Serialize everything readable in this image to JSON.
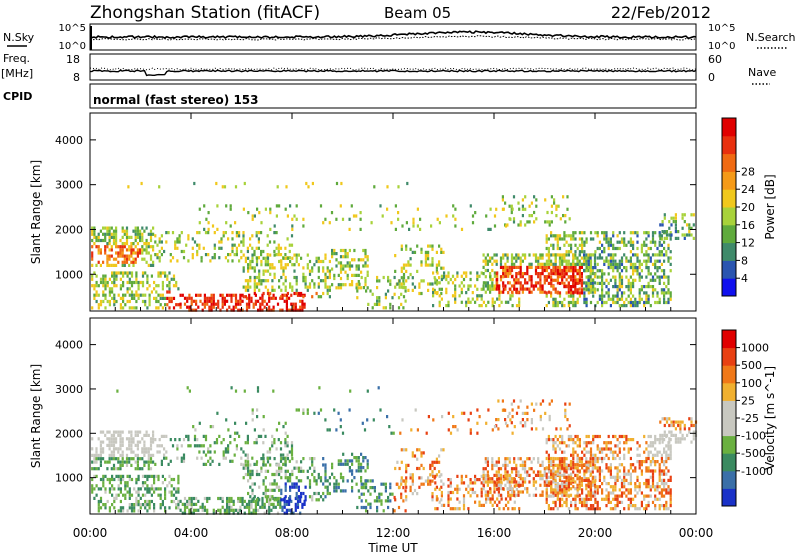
{
  "header": {
    "title": "Zhongshan Station (fitACF)",
    "beam": "Beam 05",
    "date": "22/Feb/2012",
    "mode": "normal (fast stereo) 153"
  },
  "panels": {
    "nsky": {
      "label": "N.Sky",
      "right_label": "N.Search",
      "left_ticks": [
        "10^5",
        "10^0"
      ],
      "right_ticks": [
        "10^5",
        "10^0"
      ]
    },
    "freq": {
      "label_line1": "Freq.",
      "label_line2": "[MHz]",
      "right_label": "Nave",
      "left_ticks": [
        "18",
        "8"
      ],
      "right_ticks": [
        "60",
        "0"
      ]
    },
    "cpid": {
      "label": "CPID"
    }
  },
  "chart_data": [
    {
      "type": "heatmap",
      "name": "power",
      "ylabel": "Slant Range [km]",
      "yticks": [
        1000,
        2000,
        3000,
        4000
      ],
      "ylim": [
        180,
        4600
      ],
      "xlim": [
        0,
        24
      ],
      "colorbar": {
        "label": "Power [dB]",
        "ticks": [
          "4",
          "8",
          "12",
          "16",
          "20",
          "24",
          "28"
        ],
        "colors": [
          "#1010ee",
          "#2a55b0",
          "#3f8a6a",
          "#5faa3c",
          "#a8d23a",
          "#f0c81c",
          "#f59a18",
          "#f06a12",
          "#e8300e",
          "#e00000"
        ]
      }
    },
    {
      "type": "heatmap",
      "name": "velocity",
      "ylabel": "Slant Range [km]",
      "yticks": [
        1000,
        2000,
        3000,
        4000
      ],
      "ylim": [
        180,
        4600
      ],
      "xlim": [
        0,
        24
      ],
      "colorbar": {
        "label": "Velocity [m s^-1]",
        "ticks": [
          "1000",
          "500",
          "100",
          "25",
          "-25",
          "-100",
          "-500",
          "-1000"
        ],
        "colors": [
          "#1a32c8",
          "#3a6fa8",
          "#3a8a60",
          "#6ab040",
          "#c8c8c0",
          "#c8c8c0",
          "#f0b030",
          "#f07818",
          "#e84012",
          "#e00000"
        ]
      }
    }
  ],
  "xaxis": {
    "label": "Time UT",
    "ticks": [
      "00:00",
      "04:00",
      "08:00",
      "12:00",
      "16:00",
      "20:00",
      "00:00"
    ]
  }
}
